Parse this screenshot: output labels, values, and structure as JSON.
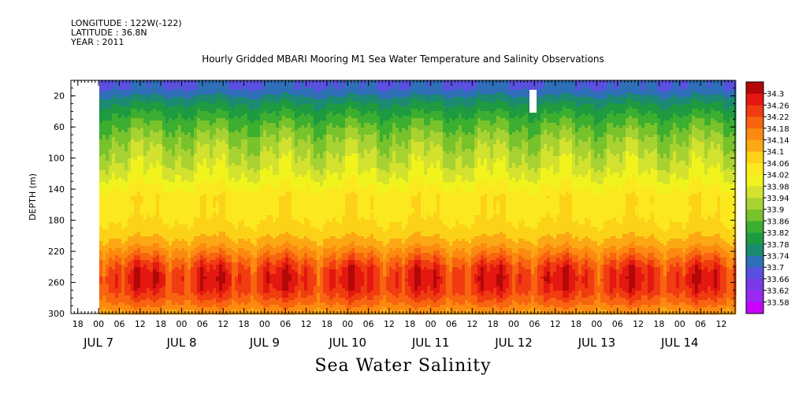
{
  "header": {
    "longitude": "LONGITUDE : 122W(-122)",
    "latitude": "LATITUDE : 36.8N",
    "year": "YEAR : 2011"
  },
  "chart_data": {
    "type": "heatmap",
    "title": "Hourly Gridded MBARI Mooring M1 Sea Water Temperature and Salinity Observations",
    "xlabel": "Sea Water Salinity",
    "ylabel": "DEPTH (m)",
    "ylim": [
      300,
      0
    ],
    "y_ticks": [
      20,
      60,
      100,
      140,
      180,
      220,
      260,
      300
    ],
    "x_start": "JUL 6 16:00",
    "x_end": "JUL 14 16:00",
    "data_start": "JUL 7 00:00",
    "x_hour_ticks": [
      "18",
      "00",
      "06",
      "12",
      "18",
      "00",
      "06",
      "12",
      "18",
      "00",
      "06",
      "12",
      "18",
      "00",
      "06",
      "12",
      "18",
      "00",
      "06",
      "12",
      "18",
      "00",
      "06",
      "12",
      "18",
      "00",
      "06",
      "12",
      "18",
      "00",
      "06",
      "12"
    ],
    "x_day_labels": [
      "JUL 7",
      "JUL 8",
      "JUL 9",
      "JUL 10",
      "JUL 11",
      "JUL 12",
      "JUL 13",
      "JUL 14"
    ],
    "colorbar": {
      "levels": [
        33.58,
        33.62,
        33.66,
        33.7,
        33.74,
        33.78,
        33.82,
        33.86,
        33.9,
        33.94,
        33.98,
        34.02,
        34.06,
        34.1,
        34.14,
        34.18,
        34.22,
        34.26,
        34.3
      ],
      "colors": [
        "#c800ff",
        "#9a28f0",
        "#7a3ae8",
        "#5a50e0",
        "#2e6fb8",
        "#1c8a70",
        "#1e9a40",
        "#3cae30",
        "#78c22c",
        "#a8d232",
        "#d2e22e",
        "#f0f41c",
        "#fce81e",
        "#fcd218",
        "#fca814",
        "#fc8a10",
        "#f86410",
        "#f03c10",
        "#e41810",
        "#b40808"
      ]
    },
    "profile": [
      {
        "depth": 10,
        "value": 33.7
      },
      {
        "depth": 30,
        "value": 33.78
      },
      {
        "depth": 50,
        "value": 33.84
      },
      {
        "depth": 70,
        "value": 33.89
      },
      {
        "depth": 90,
        "value": 33.93
      },
      {
        "depth": 110,
        "value": 33.96
      },
      {
        "depth": 130,
        "value": 34.0
      },
      {
        "depth": 150,
        "value": 34.05
      },
      {
        "depth": 170,
        "value": 34.05
      },
      {
        "depth": 190,
        "value": 34.07
      },
      {
        "depth": 210,
        "value": 34.12
      },
      {
        "depth": 225,
        "value": 34.18
      },
      {
        "depth": 240,
        "value": 34.24
      },
      {
        "depth": 255,
        "value": 34.27
      },
      {
        "depth": 270,
        "value": 34.25
      },
      {
        "depth": 285,
        "value": 34.2
      },
      {
        "depth": 300,
        "value": 34.13
      }
    ]
  }
}
